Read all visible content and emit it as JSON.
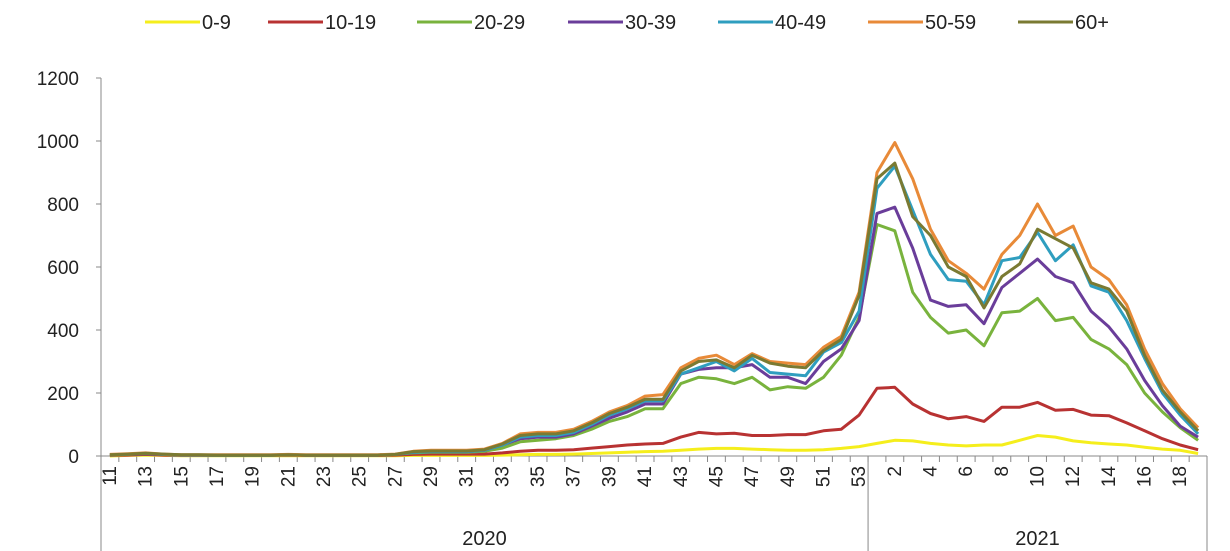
{
  "chart_data": {
    "type": "line",
    "title": "",
    "xlabel": "",
    "ylabel": "",
    "ylim": [
      0,
      1200
    ],
    "y_ticks": [
      "0",
      "200",
      "400",
      "600",
      "800",
      "1000",
      "1200"
    ],
    "grid": false,
    "legend_position": "top",
    "x_weeks": [
      11,
      12,
      13,
      14,
      15,
      16,
      17,
      18,
      19,
      20,
      21,
      22,
      23,
      24,
      25,
      26,
      27,
      28,
      29,
      30,
      31,
      32,
      33,
      34,
      35,
      36,
      37,
      38,
      39,
      40,
      41,
      42,
      43,
      44,
      45,
      46,
      47,
      48,
      49,
      50,
      51,
      52,
      53,
      1,
      2,
      3,
      4,
      5,
      6,
      7,
      8,
      9,
      10,
      11,
      12,
      13,
      14,
      15,
      16,
      17,
      18,
      19
    ],
    "x_tick_labels": [
      "11",
      "13",
      "15",
      "17",
      "19",
      "21",
      "23",
      "25",
      "27",
      "29",
      "31",
      "33",
      "35",
      "37",
      "39",
      "41",
      "43",
      "45",
      "47",
      "49",
      "51",
      "53",
      "2",
      "4",
      "6",
      "8",
      "10",
      "12",
      "14",
      "16",
      "18"
    ],
    "x_groups": [
      {
        "label": "2020",
        "weeks": "11-53"
      },
      {
        "label": "2021",
        "weeks": "1-19"
      }
    ],
    "series": [
      {
        "name": "0-9",
        "color": "#f5ee1c",
        "values": [
          0,
          2,
          3,
          2,
          1,
          1,
          1,
          1,
          1,
          1,
          1,
          1,
          1,
          1,
          1,
          1,
          1,
          2,
          2,
          2,
          2,
          2,
          3,
          4,
          5,
          5,
          6,
          8,
          10,
          12,
          14,
          15,
          18,
          22,
          24,
          24,
          22,
          20,
          18,
          18,
          20,
          24,
          30,
          40,
          50,
          48,
          40,
          35,
          32,
          35,
          35,
          50,
          65,
          60,
          48,
          42,
          38,
          35,
          28,
          22,
          18,
          8
        ]
      },
      {
        "name": "10-19",
        "color": "#b83232",
        "values": [
          2,
          3,
          5,
          3,
          2,
          2,
          2,
          2,
          2,
          2,
          3,
          2,
          2,
          2,
          2,
          2,
          3,
          5,
          6,
          6,
          6,
          6,
          10,
          15,
          18,
          18,
          20,
          25,
          30,
          35,
          38,
          40,
          60,
          75,
          70,
          72,
          65,
          65,
          68,
          68,
          80,
          85,
          130,
          215,
          218,
          165,
          135,
          118,
          125,
          110,
          155,
          155,
          170,
          145,
          148,
          130,
          128,
          105,
          80,
          55,
          35,
          20
        ]
      },
      {
        "name": "20-29",
        "color": "#79b33d",
        "values": [
          3,
          5,
          8,
          5,
          3,
          3,
          2,
          2,
          2,
          2,
          4,
          3,
          3,
          3,
          3,
          3,
          5,
          10,
          12,
          12,
          12,
          15,
          25,
          45,
          50,
          55,
          65,
          85,
          110,
          125,
          150,
          150,
          230,
          250,
          245,
          230,
          250,
          210,
          220,
          215,
          250,
          320,
          440,
          735,
          715,
          520,
          440,
          390,
          400,
          350,
          455,
          460,
          500,
          430,
          440,
          370,
          340,
          290,
          200,
          140,
          90,
          50
        ]
      },
      {
        "name": "30-39",
        "color": "#6a3d9a",
        "values": [
          4,
          6,
          8,
          5,
          3,
          3,
          3,
          3,
          3,
          3,
          4,
          3,
          3,
          3,
          3,
          3,
          5,
          12,
          14,
          14,
          14,
          18,
          35,
          55,
          60,
          60,
          70,
          95,
          120,
          140,
          165,
          165,
          260,
          275,
          280,
          280,
          290,
          250,
          250,
          230,
          300,
          340,
          430,
          770,
          790,
          660,
          495,
          475,
          480,
          420,
          535,
          580,
          625,
          570,
          550,
          460,
          410,
          340,
          240,
          160,
          95,
          60
        ]
      },
      {
        "name": "40-49",
        "color": "#2f9ebf",
        "values": [
          4,
          6,
          8,
          5,
          3,
          3,
          3,
          3,
          3,
          3,
          4,
          3,
          3,
          3,
          3,
          3,
          5,
          12,
          14,
          14,
          14,
          18,
          35,
          60,
          65,
          65,
          75,
          100,
          130,
          150,
          175,
          175,
          260,
          280,
          300,
          270,
          310,
          265,
          260,
          255,
          330,
          360,
          460,
          850,
          920,
          780,
          640,
          560,
          555,
          480,
          620,
          630,
          710,
          620,
          670,
          540,
          520,
          430,
          310,
          200,
          130,
          70
        ]
      },
      {
        "name": "50-59",
        "color": "#e88a38",
        "values": [
          5,
          7,
          10,
          6,
          4,
          4,
          4,
          4,
          4,
          4,
          5,
          4,
          4,
          4,
          4,
          4,
          6,
          15,
          18,
          18,
          18,
          22,
          40,
          70,
          75,
          75,
          85,
          110,
          140,
          160,
          190,
          195,
          280,
          310,
          320,
          290,
          325,
          300,
          295,
          290,
          345,
          380,
          520,
          900,
          995,
          880,
          720,
          620,
          580,
          530,
          640,
          700,
          800,
          700,
          730,
          600,
          560,
          480,
          340,
          230,
          150,
          90
        ]
      },
      {
        "name": "60+",
        "color": "#7a7a32",
        "values": [
          4,
          6,
          9,
          6,
          4,
          4,
          3,
          3,
          3,
          3,
          4,
          3,
          3,
          3,
          3,
          3,
          5,
          14,
          16,
          16,
          16,
          20,
          38,
          65,
          70,
          70,
          80,
          105,
          135,
          155,
          180,
          180,
          270,
          300,
          305,
          280,
          320,
          295,
          285,
          280,
          335,
          370,
          510,
          880,
          930,
          760,
          700,
          600,
          570,
          470,
          570,
          610,
          720,
          690,
          660,
          550,
          530,
          460,
          320,
          210,
          140,
          80
        ]
      }
    ]
  }
}
